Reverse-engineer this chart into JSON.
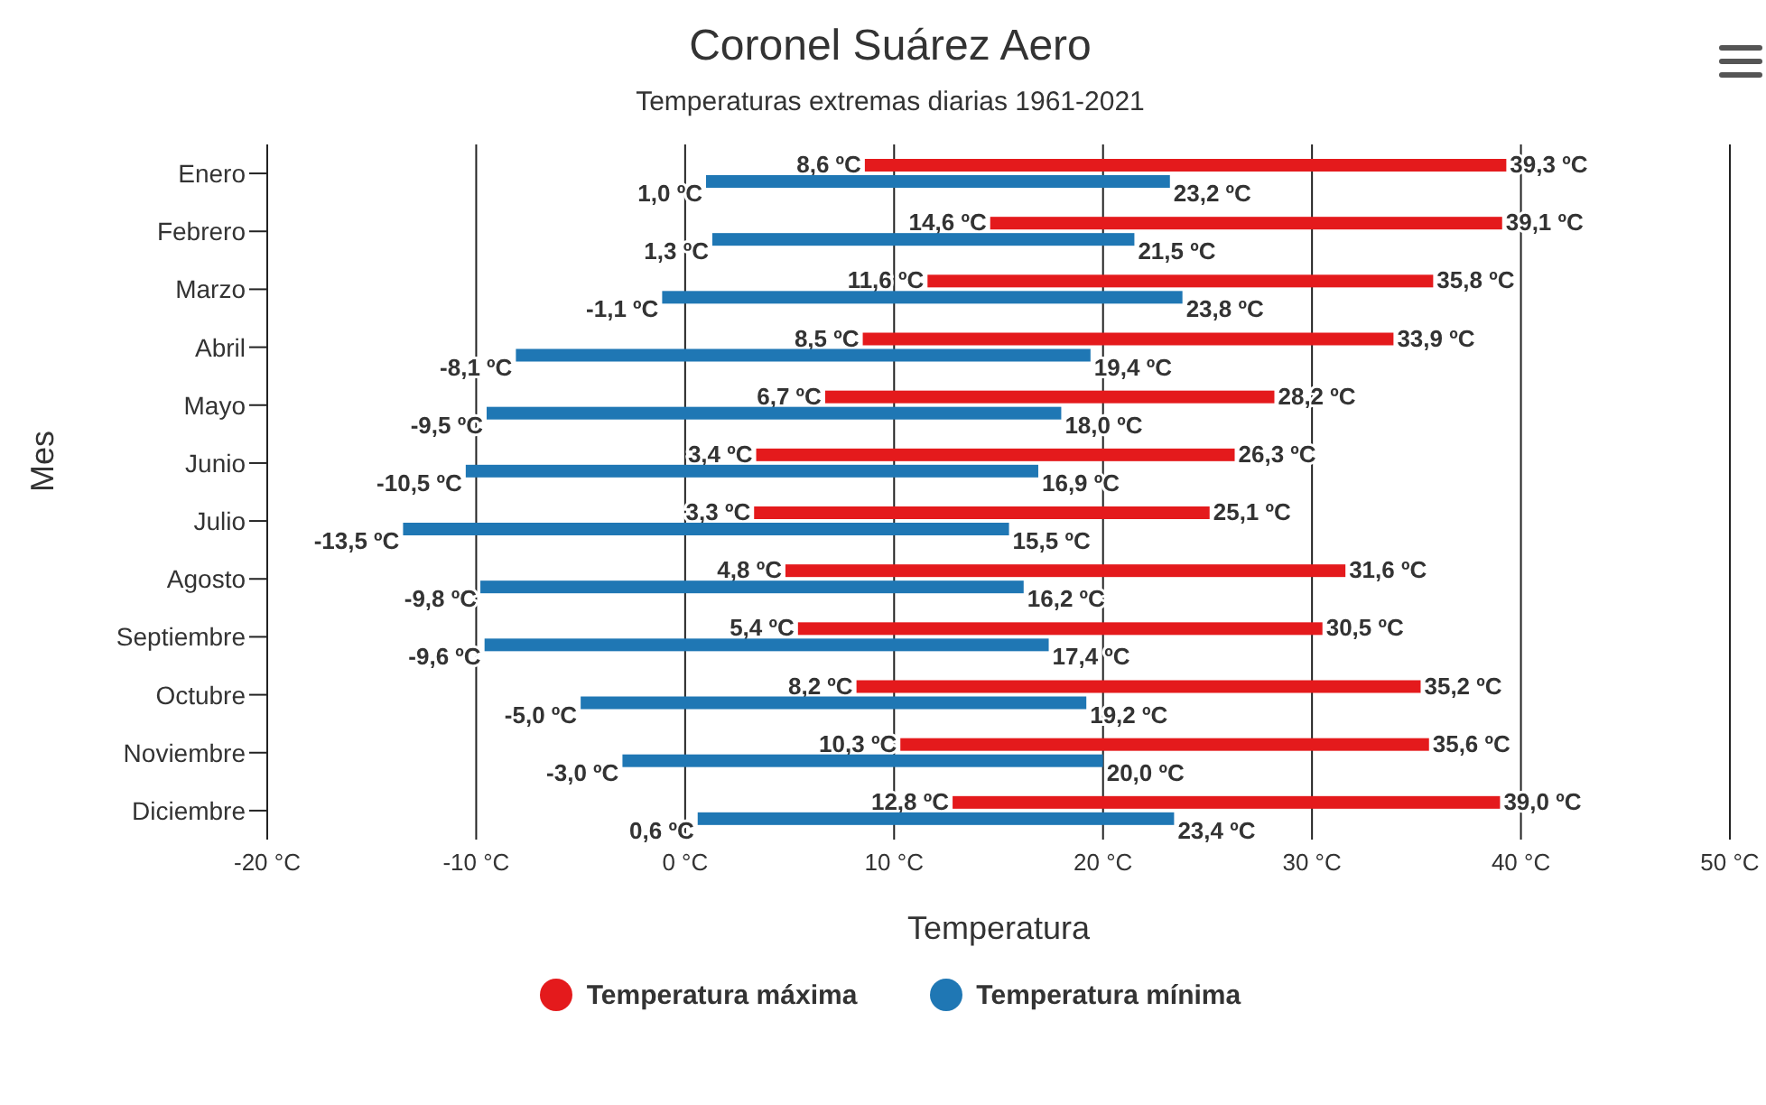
{
  "chart_data": {
    "type": "bar",
    "orientation": "horizontal",
    "title": "Coronel Suárez Aero",
    "subtitle": "Temperaturas extremas diarias 1961-2021",
    "xlabel": "Temperatura",
    "ylabel": "Mes",
    "categories": [
      "Enero",
      "Febrero",
      "Marzo",
      "Abril",
      "Mayo",
      "Junio",
      "Julio",
      "Agosto",
      "Septiembre",
      "Octubre",
      "Noviembre",
      "Diciembre"
    ],
    "series": [
      {
        "name": "Temperatura máxima",
        "color": "#e41a1c",
        "base": [
          8.6,
          14.6,
          11.6,
          8.5,
          6.7,
          3.4,
          3.3,
          4.8,
          5.4,
          8.2,
          10.3,
          12.8
        ],
        "values": [
          30.7,
          24.5,
          24.2,
          25.4,
          21.5,
          22.9,
          21.8,
          26.8,
          25.1,
          27.0,
          25.3,
          26.2
        ],
        "value_labels": [
          [
            "8,6 ºC",
            "39,3 ºC"
          ],
          [
            "14,6 ºC",
            "39,1 ºC"
          ],
          [
            "11,6 ºC",
            "35,8 ºC"
          ],
          [
            "8,5 ºC",
            "33,9 ºC"
          ],
          [
            "6,7 ºC",
            "28,2 ºC"
          ],
          [
            "3,4 ºC",
            "26,3 ºC"
          ],
          [
            "3,3 ºC",
            "25,1 ºC"
          ],
          [
            "4,8 ºC",
            "31,6 ºC"
          ],
          [
            "5,4 ºC",
            "30,5 ºC"
          ],
          [
            "8,2 ºC",
            "35,2 ºC"
          ],
          [
            "10,3 ºC",
            "35,6 ºC"
          ],
          [
            "12,8 ºC",
            "39,0 ºC"
          ]
        ]
      },
      {
        "name": "Temperatura mínima",
        "color": "#1f77b4",
        "base": [
          1.0,
          1.3,
          -1.1,
          -8.1,
          -9.5,
          -10.5,
          -13.5,
          -9.8,
          -9.6,
          -5.0,
          -3.0,
          0.6
        ],
        "values": [
          22.2,
          20.2,
          24.9,
          27.5,
          27.5,
          27.4,
          29.0,
          26.0,
          27.0,
          24.2,
          23.0,
          22.8
        ],
        "value_labels": [
          [
            "1,0 ºC",
            "23,2 ºC"
          ],
          [
            "1,3 ºC",
            "21,5 ºC"
          ],
          [
            "-1,1 ºC",
            "23,8 ºC"
          ],
          [
            "-8,1 ºC",
            "19,4 ºC"
          ],
          [
            "-9,5 ºC",
            "18,0 ºC"
          ],
          [
            "-10,5 ºC",
            "16,9 ºC"
          ],
          [
            "-13,5 ºC",
            "15,5 ºC"
          ],
          [
            "-9,8 ºC",
            "16,2 ºC"
          ],
          [
            "-9,6 ºC",
            "17,4 ºC"
          ],
          [
            "-5,0 ºC",
            "19,2 ºC"
          ],
          [
            "-3,0 ºC",
            "20,0 ºC"
          ],
          [
            "0,6 ºC",
            "23,4 ºC"
          ]
        ]
      }
    ],
    "xlim": [
      -20,
      50
    ],
    "xticks": [
      {
        "value": -20,
        "label": "-20 °C"
      },
      {
        "value": -10,
        "label": "-10 °C"
      },
      {
        "value": 0,
        "label": "0 °C"
      },
      {
        "value": 10,
        "label": "10 °C"
      },
      {
        "value": 20,
        "label": "20 °C"
      },
      {
        "value": 30,
        "label": "30 °C"
      },
      {
        "value": 40,
        "label": "40 °C"
      },
      {
        "value": 50,
        "label": "50 °C"
      }
    ],
    "grid": "x",
    "legend": "bottom",
    "marker": "circle"
  }
}
